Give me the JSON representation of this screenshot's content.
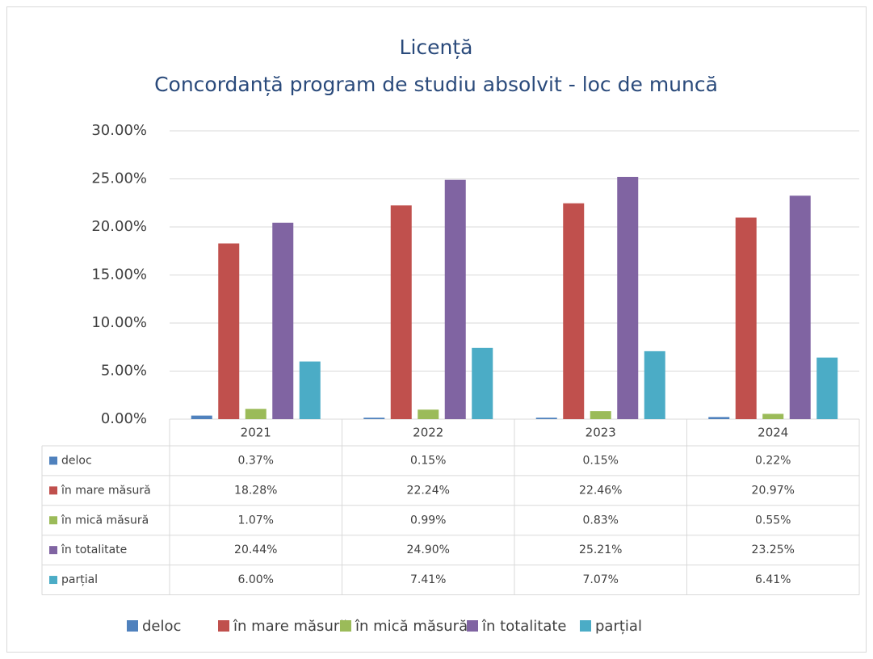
{
  "chart_data": {
    "type": "bar",
    "title": "Licență",
    "subtitle": "Concordanță program de studiu absolvit - loc de muncă",
    "categories": [
      "2021",
      "2022",
      "2023",
      "2024"
    ],
    "series": [
      {
        "name": "deloc",
        "color": "#4f81bd",
        "values": [
          0.37,
          0.15,
          0.15,
          0.22
        ],
        "value_labels": [
          "0.37%",
          "0.15%",
          "0.15%",
          "0.22%"
        ]
      },
      {
        "name": "în mare măsură",
        "color": "#c0504d",
        "values": [
          18.28,
          22.24,
          22.46,
          20.97
        ],
        "value_labels": [
          "18.28%",
          "22.24%",
          "22.46%",
          "20.97%"
        ]
      },
      {
        "name": "în mică măsură",
        "color": "#9bbb59",
        "values": [
          1.07,
          0.99,
          0.83,
          0.55
        ],
        "value_labels": [
          "1.07%",
          "0.99%",
          "0.83%",
          "0.55%"
        ]
      },
      {
        "name": "în totalitate",
        "color": "#8064a2",
        "values": [
          20.44,
          24.9,
          25.21,
          23.25
        ],
        "value_labels": [
          "20.44%",
          "24.90%",
          "25.21%",
          "23.25%"
        ]
      },
      {
        "name": "parțial",
        "color": "#4bacc6",
        "values": [
          6.0,
          7.41,
          7.07,
          6.41
        ],
        "value_labels": [
          "6.00%",
          "7.41%",
          "7.07%",
          "6.41%"
        ]
      }
    ],
    "ylim": [
      0,
      30
    ],
    "yticks": [
      {
        "value": 0,
        "label": "0.00%"
      },
      {
        "value": 5,
        "label": "5.00%"
      },
      {
        "value": 10,
        "label": "10.00%"
      },
      {
        "value": 15,
        "label": "15.00%"
      },
      {
        "value": 20,
        "label": "20.00%"
      },
      {
        "value": 25,
        "label": "25.00%"
      },
      {
        "value": 30,
        "label": "30.00%"
      }
    ],
    "grid": true,
    "legend": "bottom"
  }
}
